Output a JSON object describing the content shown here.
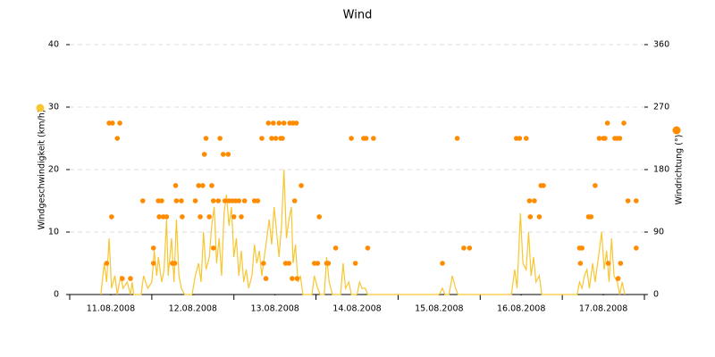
{
  "chart_data": {
    "type": "line",
    "title": "Wind",
    "y_label": "Windgeschwindigkeit (km/h)",
    "y2_label": "Windrichtung (°)",
    "xlim": [
      0,
      7
    ],
    "xticks": [
      {
        "value": 0.5,
        "label": "11.08.2008"
      },
      {
        "value": 1.5,
        "label": "12.08.2008"
      },
      {
        "value": 2.5,
        "label": "13.08.2008"
      },
      {
        "value": 3.5,
        "label": "14.08.2008"
      },
      {
        "value": 4.5,
        "label": "15.08.2008"
      },
      {
        "value": 5.5,
        "label": "16.08.2008"
      },
      {
        "value": 6.5,
        "label": "17.08.2008"
      }
    ],
    "ylim": [
      0,
      40
    ],
    "yticks": [
      0,
      10,
      20,
      30,
      40
    ],
    "y2lim": [
      0,
      360
    ],
    "y2ticks": [
      0,
      90,
      180,
      270,
      360
    ],
    "grid": true,
    "series": [
      {
        "type": "line",
        "color": "#f7c631",
        "axis": "y",
        "x": [
          0.38,
          0.42,
          0.45,
          0.48,
          0.51,
          0.55,
          0.58,
          0.62,
          0.65,
          0.7,
          0.74,
          0.76,
          0.78,
          0.87,
          0.9,
          0.95,
          1.0,
          1.03,
          1.06,
          1.08,
          1.12,
          1.15,
          1.18,
          1.2,
          1.24,
          1.27,
          1.3,
          1.33,
          1.36,
          1.4,
          1.49,
          1.53,
          1.57,
          1.6,
          1.63,
          1.66,
          1.7,
          1.73,
          1.76,
          1.79,
          1.82,
          1.85,
          1.88,
          1.91,
          1.94,
          1.97,
          2.0,
          2.03,
          2.06,
          2.09,
          2.12,
          2.15,
          2.18,
          2.22,
          2.25,
          2.28,
          2.31,
          2.34,
          2.37,
          2.4,
          2.43,
          2.46,
          2.49,
          2.52,
          2.55,
          2.58,
          2.61,
          2.64,
          2.67,
          2.7,
          2.72,
          2.75,
          2.78,
          2.81,
          2.84,
          2.95,
          2.98,
          3.02,
          3.05,
          3.1,
          3.13,
          3.16,
          3.2,
          3.3,
          3.33,
          3.36,
          3.4,
          3.43,
          3.5,
          3.53,
          3.56,
          3.6,
          3.63,
          4.5,
          4.54,
          4.57,
          4.62,
          4.66,
          4.7,
          4.73,
          5.38,
          5.42,
          5.45,
          5.49,
          5.52,
          5.56,
          5.59,
          5.62,
          5.65,
          5.68,
          5.72,
          5.75,
          6.18,
          6.21,
          6.24,
          6.27,
          6.3,
          6.33,
          6.37,
          6.4,
          6.44,
          6.48,
          6.51,
          6.54,
          6.57,
          6.6,
          6.63,
          6.67,
          6.7,
          6.73,
          6.76
        ],
        "values": [
          0,
          5,
          2,
          9,
          1,
          3,
          0,
          3,
          1,
          2,
          0,
          2,
          0,
          0,
          3,
          1,
          2,
          7,
          3,
          6,
          2,
          4,
          12,
          3,
          9,
          2,
          12,
          3,
          1,
          0,
          0,
          3,
          5,
          2,
          10,
          4,
          6,
          11,
          14,
          5,
          9,
          3,
          13,
          16,
          11,
          14,
          6,
          9,
          3,
          7,
          2,
          4,
          1,
          3,
          8,
          5,
          7,
          3,
          6,
          9,
          12,
          8,
          14,
          10,
          6,
          11,
          20,
          9,
          12,
          14,
          5,
          8,
          2,
          3,
          0,
          0,
          3,
          1,
          0,
          0,
          6,
          2,
          0,
          0,
          5,
          1,
          2,
          0,
          0,
          2,
          1,
          1,
          0,
          0,
          1,
          0,
          0,
          3,
          1,
          0,
          0,
          4,
          1,
          13,
          5,
          4,
          10,
          3,
          6,
          2,
          3,
          0,
          0,
          2,
          1,
          3,
          4,
          1,
          5,
          2,
          6,
          10,
          4,
          7,
          2,
          9,
          3,
          2,
          0,
          2,
          0
        ]
      },
      {
        "type": "scatter",
        "color": "#ff8c00",
        "axis": "y2",
        "x": [
          0.51,
          0.45,
          0.48,
          0.52,
          0.58,
          0.61,
          0.64,
          0.74,
          0.89,
          1.02,
          1.02,
          1.08,
          1.12,
          1.09,
          1.14,
          1.18,
          1.25,
          1.28,
          1.29,
          1.3,
          1.36,
          1.37,
          1.53,
          1.57,
          1.59,
          1.62,
          1.64,
          1.66,
          1.7,
          1.73,
          1.75,
          1.75,
          1.81,
          1.83,
          1.87,
          1.93,
          1.89,
          1.94,
          1.98,
          2.02,
          2.0,
          2.06,
          2.09,
          2.13,
          2.25,
          2.29,
          2.34,
          2.36,
          2.39,
          2.42,
          2.46,
          2.48,
          2.51,
          2.55,
          2.57,
          2.59,
          2.61,
          2.63,
          2.67,
          2.68,
          2.72,
          2.76,
          2.71,
          2.77,
          2.74,
          2.82,
          3.04,
          2.98,
          3.02,
          3.13,
          3.15,
          3.24,
          3.43,
          3.48,
          3.58,
          3.61,
          3.63,
          3.7,
          4.54,
          4.72,
          4.8,
          4.87,
          5.44,
          5.48,
          5.56,
          5.61,
          5.6,
          5.66,
          5.72,
          5.74,
          5.77,
          6.21,
          6.24,
          6.22,
          6.32,
          6.35,
          6.4,
          6.45,
          6.5,
          6.52,
          6.55,
          6.56,
          6.64,
          6.67,
          6.7,
          6.68,
          6.71,
          6.75,
          6.8,
          6.9,
          6.9
        ],
        "values": [
          112,
          45,
          247,
          247,
          225,
          247,
          23,
          23,
          135,
          45,
          67,
          135,
          135,
          112,
          112,
          112,
          45,
          45,
          157,
          135,
          135,
          112,
          135,
          157,
          112,
          157,
          202,
          225,
          112,
          157,
          135,
          67,
          135,
          225,
          202,
          202,
          135,
          135,
          135,
          135,
          112,
          135,
          112,
          135,
          135,
          135,
          225,
          45,
          23,
          247,
          225,
          247,
          225,
          247,
          225,
          225,
          247,
          45,
          45,
          247,
          247,
          247,
          23,
          23,
          135,
          157,
          112,
          45,
          45,
          45,
          45,
          67,
          225,
          45,
          225,
          225,
          67,
          225,
          45,
          225,
          67,
          67,
          225,
          225,
          225,
          112,
          135,
          135,
          112,
          157,
          157,
          67,
          67,
          45,
          112,
          112,
          157,
          225,
          225,
          225,
          247,
          45,
          225,
          225,
          225,
          23,
          45,
          247,
          135,
          135,
          67
        ]
      }
    ]
  }
}
